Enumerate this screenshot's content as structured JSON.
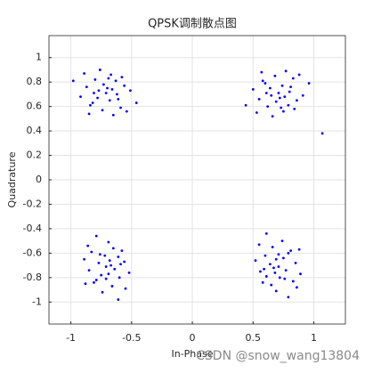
{
  "chart_data": {
    "type": "scatter",
    "title": "QPSK调制散点图",
    "x_label": "In-Phase",
    "y_label": "Quadrature",
    "annotation": "CSDN @snow_wang13804",
    "color": "#0000ff",
    "grid": true,
    "xlim": [
      -1.18,
      1.26
    ],
    "ylim": [
      -1.18,
      1.18
    ],
    "xticks": [
      -1,
      -0.5,
      0,
      0.5,
      1
    ],
    "yticks": [
      -1,
      -0.8,
      -0.6,
      -0.4,
      -0.2,
      0,
      0.2,
      0.4,
      0.6,
      0.8,
      1
    ],
    "x": [
      -0.71,
      -0.66,
      -0.77,
      -0.61,
      -0.82,
      -0.69,
      -0.74,
      -0.56,
      -0.87,
      -0.63,
      -0.8,
      -0.59,
      -0.84,
      -0.68,
      -0.73,
      -0.51,
      -0.92,
      -0.65,
      -0.76,
      -0.54,
      -0.89,
      -0.7,
      -0.62,
      -0.81,
      -0.67,
      -0.78,
      -0.58,
      -0.85,
      -0.46,
      -0.98,
      0.71,
      0.76,
      0.65,
      0.81,
      0.6,
      0.73,
      0.68,
      0.86,
      0.55,
      0.79,
      0.62,
      0.83,
      0.58,
      0.74,
      0.69,
      0.91,
      0.5,
      0.77,
      0.66,
      0.88,
      0.53,
      0.72,
      0.8,
      0.61,
      0.75,
      0.64,
      0.84,
      0.57,
      0.96,
      0.44,
      1.07,
      -0.71,
      -0.68,
      -0.69,
      -0.76,
      -0.79,
      -0.59,
      -0.85,
      -0.65,
      -0.66,
      -0.61,
      -0.6,
      -0.83,
      -0.81,
      -0.77,
      -0.64,
      -0.69,
      -0.74,
      -0.89,
      -0.52,
      -0.86,
      -0.55,
      -0.67,
      -0.72,
      -0.71,
      -0.56,
      -0.75,
      -0.58,
      -0.88,
      -0.79,
      -0.61,
      0.71,
      0.68,
      0.69,
      0.76,
      0.79,
      0.59,
      0.85,
      0.65,
      0.66,
      0.61,
      0.6,
      0.83,
      0.81,
      0.77,
      0.64,
      0.69,
      0.74,
      0.89,
      0.52,
      0.86,
      0.55,
      0.67,
      0.72,
      0.71,
      0.56,
      0.75,
      0.58,
      0.88,
      0.79,
      0.61
    ],
    "y": [
      0.71,
      0.74,
      0.73,
      0.66,
      0.63,
      0.83,
      0.57,
      0.77,
      0.76,
      0.81,
      0.82,
      0.59,
      0.61,
      0.65,
      0.78,
      0.73,
      0.68,
      0.53,
      0.9,
      0.56,
      0.87,
      0.75,
      0.7,
      0.71,
      0.86,
      0.67,
      0.84,
      0.54,
      0.63,
      0.81,
      0.71,
      0.68,
      0.69,
      0.76,
      0.79,
      0.59,
      0.85,
      0.65,
      0.66,
      0.61,
      0.6,
      0.83,
      0.81,
      0.77,
      0.64,
      0.69,
      0.74,
      0.89,
      0.52,
      0.86,
      0.55,
      0.67,
      0.72,
      0.71,
      0.56,
      0.75,
      0.58,
      0.88,
      0.79,
      0.61,
      0.38,
      -0.71,
      -0.66,
      -0.77,
      -0.61,
      -0.82,
      -0.69,
      -0.74,
      -0.56,
      -0.87,
      -0.63,
      -0.8,
      -0.59,
      -0.84,
      -0.68,
      -0.73,
      -0.51,
      -0.92,
      -0.65,
      -0.76,
      -0.54,
      -0.89,
      -0.7,
      -0.62,
      -0.81,
      -0.67,
      -0.78,
      -0.58,
      -0.85,
      -0.46,
      -0.98,
      -0.71,
      -0.76,
      -0.65,
      -0.81,
      -0.6,
      -0.73,
      -0.68,
      -0.86,
      -0.55,
      -0.79,
      -0.62,
      -0.83,
      -0.58,
      -0.74,
      -0.69,
      -0.91,
      -0.5,
      -0.77,
      -0.66,
      -0.88,
      -0.53,
      -0.72,
      -0.8,
      -0.61,
      -0.75,
      -0.64,
      -0.84,
      -0.57,
      -0.96,
      -0.44
    ]
  }
}
